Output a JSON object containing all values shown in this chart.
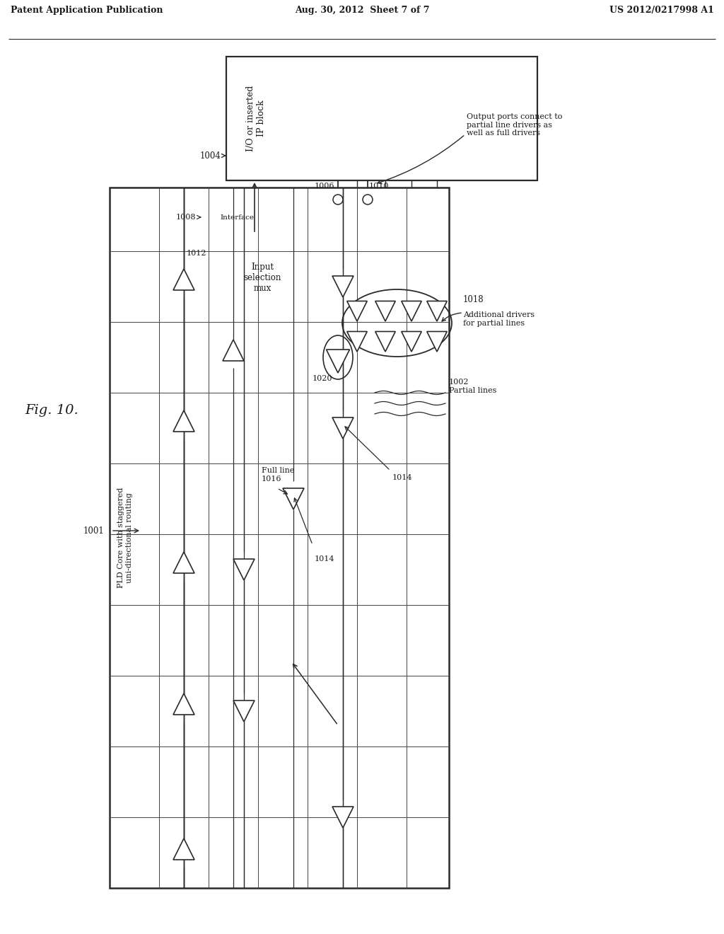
{
  "bg_color": "#ffffff",
  "line_color": "#2a2a2a",
  "text_color": "#1a1a1a",
  "header_left": "Patent Application Publication",
  "header_center": "Aug. 30, 2012  Sheet 7 of 7",
  "header_right": "US 2012/0217998 A1",
  "fig_label": "Fig. 10."
}
